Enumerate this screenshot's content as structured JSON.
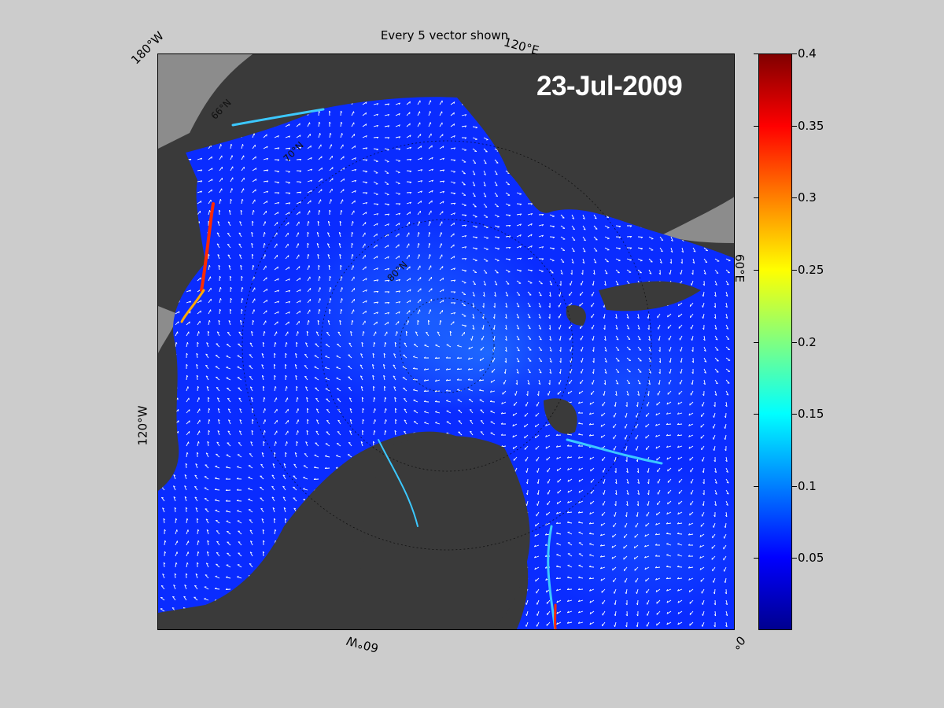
{
  "figure": {
    "title": "Every 5 vector shown",
    "date": "23-Jul-2009"
  },
  "map": {
    "longitude_labels": [
      "180°W",
      "120°E",
      "60°E",
      "0°",
      "60°W",
      "120°W"
    ],
    "latitude_labels": [
      "66°N",
      "70°N",
      "80°N"
    ],
    "colors": {
      "land": "#3a3a3a",
      "land_outside": "#8c8c8c",
      "ocean_base": "#0a2cff",
      "vectors": "#ffffff"
    }
  },
  "colorbar": {
    "min": 0,
    "max": 0.4,
    "colormap": "jet",
    "ticks": [
      "0.4",
      "0.35",
      "0.3",
      "0.25",
      "0.2",
      "0.15",
      "0.1",
      "0.05"
    ],
    "tick_values": [
      0.4,
      0.35,
      0.3,
      0.25,
      0.2,
      0.15,
      0.1,
      0.05
    ]
  }
}
